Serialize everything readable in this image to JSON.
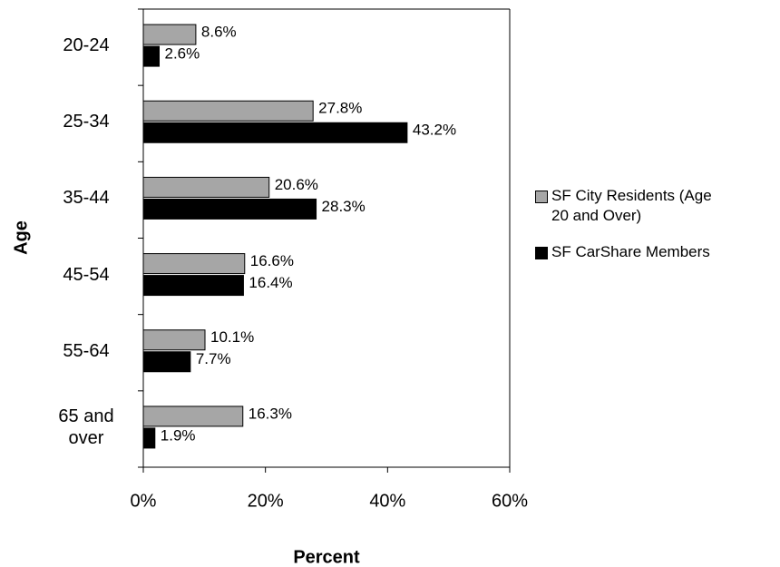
{
  "chart_data": {
    "type": "bar",
    "orientation": "horizontal",
    "x_label": "Percent",
    "y_label": "Age",
    "categories": [
      "20-24",
      "25-34",
      "35-44",
      "45-54",
      "55-64",
      "65 and over"
    ],
    "series": [
      {
        "name": "SF City Residents (Age 20 and Over)",
        "color": "#a6a6a6",
        "values": [
          8.6,
          27.8,
          20.6,
          16.6,
          10.1,
          16.3
        ],
        "value_labels": [
          "8.6%",
          "27.8%",
          "20.6%",
          "16.6%",
          "10.1%",
          "16.3%"
        ]
      },
      {
        "name": "SF CarShare Members",
        "color": "#000000",
        "values": [
          2.6,
          43.2,
          28.3,
          16.4,
          7.7,
          1.9
        ],
        "value_labels": [
          "2.6%",
          "43.2%",
          "28.3%",
          "16.4%",
          "7.7%",
          "1.9%"
        ]
      }
    ],
    "xlim": [
      0,
      60
    ],
    "xticks": [
      {
        "value": 0,
        "label": "0%"
      },
      {
        "value": 20,
        "label": "20%"
      },
      {
        "value": 40,
        "label": "40%"
      },
      {
        "value": 60,
        "label": "60%"
      }
    ],
    "grid": false,
    "legend": "right"
  }
}
